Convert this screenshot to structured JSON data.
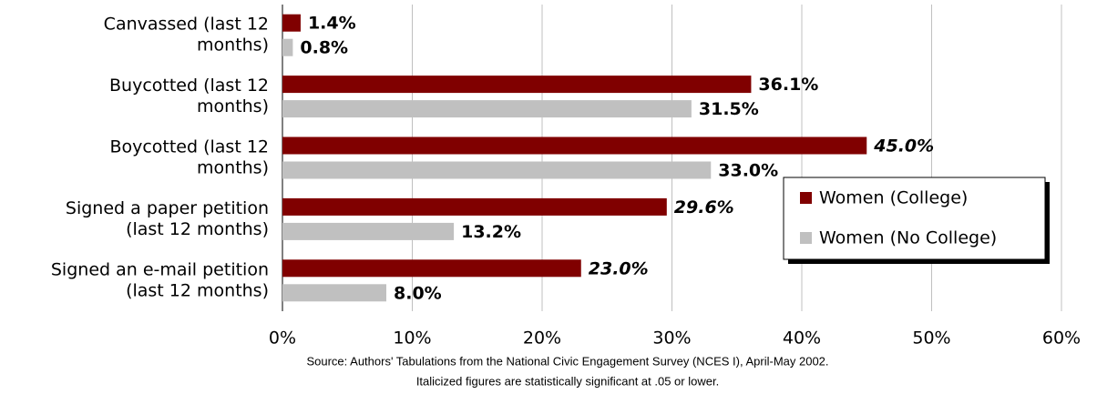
{
  "chart_data": {
    "type": "barh",
    "categories": [
      [
        "Canvassed (last 12",
        "months)"
      ],
      [
        "Buycotted (last 12",
        "months)"
      ],
      [
        "Boycotted (last 12",
        "months)"
      ],
      [
        "Signed a paper petition",
        "(last 12 months)"
      ],
      [
        "Signed an e-mail petition",
        "(last 12 months)"
      ]
    ],
    "series": [
      {
        "name": "Women (College)",
        "color": "#800000",
        "values": [
          1.4,
          36.1,
          45.0,
          29.6,
          23.0
        ],
        "value_labels": [
          "1.4%",
          "36.1%",
          "45.0%",
          "29.6%",
          "23.0%"
        ],
        "italic": [
          false,
          false,
          true,
          true,
          true
        ]
      },
      {
        "name": "Women (No College)",
        "color": "#c0c0c0",
        "values": [
          0.8,
          31.5,
          33.0,
          13.2,
          8.0
        ],
        "value_labels": [
          "0.8%",
          "31.5%",
          "33.0%",
          "13.2%",
          "8.0%"
        ],
        "italic": [
          false,
          false,
          false,
          false,
          false
        ]
      }
    ],
    "xlim": [
      0,
      60
    ],
    "xticks": [
      {
        "value": 0,
        "label": "0%"
      },
      {
        "value": 10,
        "label": "10%"
      },
      {
        "value": 20,
        "label": "20%"
      },
      {
        "value": 30,
        "label": "30%"
      },
      {
        "value": 40,
        "label": "40%"
      },
      {
        "value": 50,
        "label": "50%"
      },
      {
        "value": 60,
        "label": "60%"
      }
    ],
    "grid": true,
    "legend_position": "right",
    "notes": [
      "Source:  Authors' Tabulations from the National Civic Engagement Survey (NCES I), April-May 2002.",
      "Italicized figures are statistically significant at .05 or lower."
    ]
  }
}
